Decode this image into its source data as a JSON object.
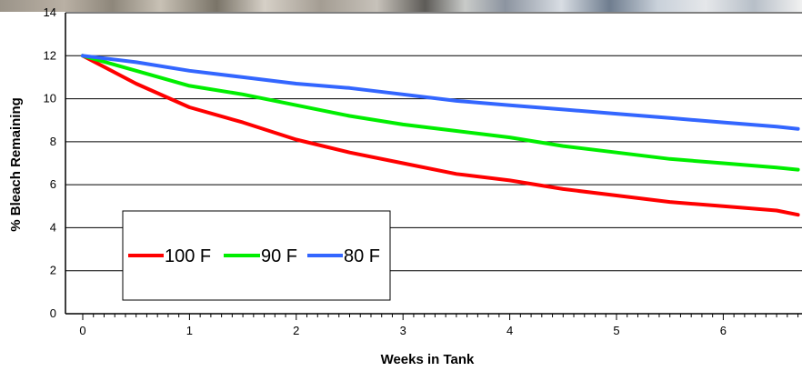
{
  "chart_data": {
    "type": "line",
    "title": "",
    "xlabel": "Weeks in Tank",
    "ylabel": "% Bleach Remaining",
    "xlim": [
      0,
      6.7
    ],
    "ylim": [
      0,
      14
    ],
    "xticks": [
      0,
      1,
      2,
      3,
      4,
      5,
      6
    ],
    "yticks": [
      0,
      2,
      4,
      6,
      8,
      10,
      12,
      14
    ],
    "grid": "horizontal",
    "legend_position": "lower-left",
    "x": [
      0,
      0.5,
      1,
      1.5,
      2,
      2.5,
      3,
      3.5,
      4,
      4.5,
      5,
      5.5,
      6,
      6.5,
      6.7
    ],
    "series": [
      {
        "name": "100 F",
        "color": "#ff0000",
        "values": [
          12.0,
          10.7,
          9.6,
          8.9,
          8.1,
          7.5,
          7.0,
          6.5,
          6.2,
          5.8,
          5.5,
          5.2,
          5.0,
          4.8,
          4.6
        ]
      },
      {
        "name": "90 F",
        "color": "#00ee00",
        "values": [
          12.0,
          11.3,
          10.6,
          10.2,
          9.7,
          9.2,
          8.8,
          8.5,
          8.2,
          7.8,
          7.5,
          7.2,
          7.0,
          6.8,
          6.7
        ]
      },
      {
        "name": "80 F",
        "color": "#3366ff",
        "values": [
          12.0,
          11.7,
          11.3,
          11.0,
          10.7,
          10.5,
          10.2,
          9.9,
          9.7,
          9.5,
          9.3,
          9.1,
          8.9,
          8.7,
          8.6
        ]
      }
    ]
  }
}
